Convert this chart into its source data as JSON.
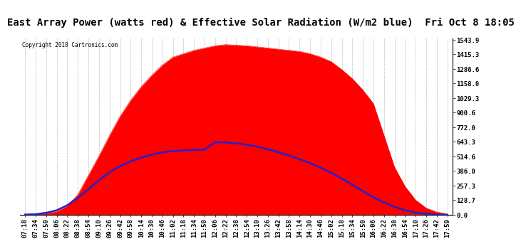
{
  "title": "East Array Power (watts red) & Effective Solar Radiation (W/m2 blue)  Fri Oct 8 18:05",
  "copyright": "Copyright 2010 Cartronics.com",
  "yticks": [
    0.0,
    128.7,
    257.3,
    386.0,
    514.6,
    643.3,
    772.0,
    900.6,
    1029.3,
    1158.0,
    1286.6,
    1415.3,
    1543.9
  ],
  "ymax": 1543.9,
  "ymin": 0.0,
  "x_labels": [
    "07:18",
    "07:34",
    "07:50",
    "08:06",
    "08:22",
    "08:38",
    "08:54",
    "09:10",
    "09:26",
    "09:42",
    "09:58",
    "10:14",
    "10:30",
    "10:46",
    "11:02",
    "11:18",
    "11:34",
    "11:50",
    "12:06",
    "12:22",
    "12:38",
    "12:54",
    "13:10",
    "13:26",
    "13:42",
    "13:58",
    "14:14",
    "14:30",
    "14:46",
    "15:02",
    "15:18",
    "15:34",
    "15:50",
    "16:06",
    "16:22",
    "16:38",
    "16:54",
    "17:10",
    "17:26",
    "17:42",
    "17:59"
  ],
  "red_area": [
    5,
    8,
    15,
    30,
    80,
    180,
    350,
    520,
    700,
    870,
    1010,
    1130,
    1230,
    1320,
    1390,
    1420,
    1450,
    1470,
    1490,
    1500,
    1495,
    1490,
    1480,
    1470,
    1460,
    1450,
    1440,
    1420,
    1390,
    1350,
    1280,
    1200,
    1100,
    980,
    700,
    420,
    250,
    130,
    60,
    25,
    8
  ],
  "blue_line": [
    2,
    5,
    18,
    40,
    85,
    150,
    225,
    305,
    375,
    430,
    470,
    505,
    530,
    550,
    562,
    568,
    572,
    575,
    640,
    638,
    630,
    618,
    600,
    578,
    552,
    522,
    490,
    455,
    415,
    370,
    320,
    265,
    208,
    155,
    108,
    70,
    40,
    20,
    8,
    2,
    0
  ],
  "bg_color": "#ffffff",
  "plot_bg_color": "#ffffff",
  "red_color": "#ff0000",
  "blue_color": "#2222cc",
  "grid_color": "#bbbbbb",
  "title_fontsize": 10,
  "tick_fontsize": 6.5
}
